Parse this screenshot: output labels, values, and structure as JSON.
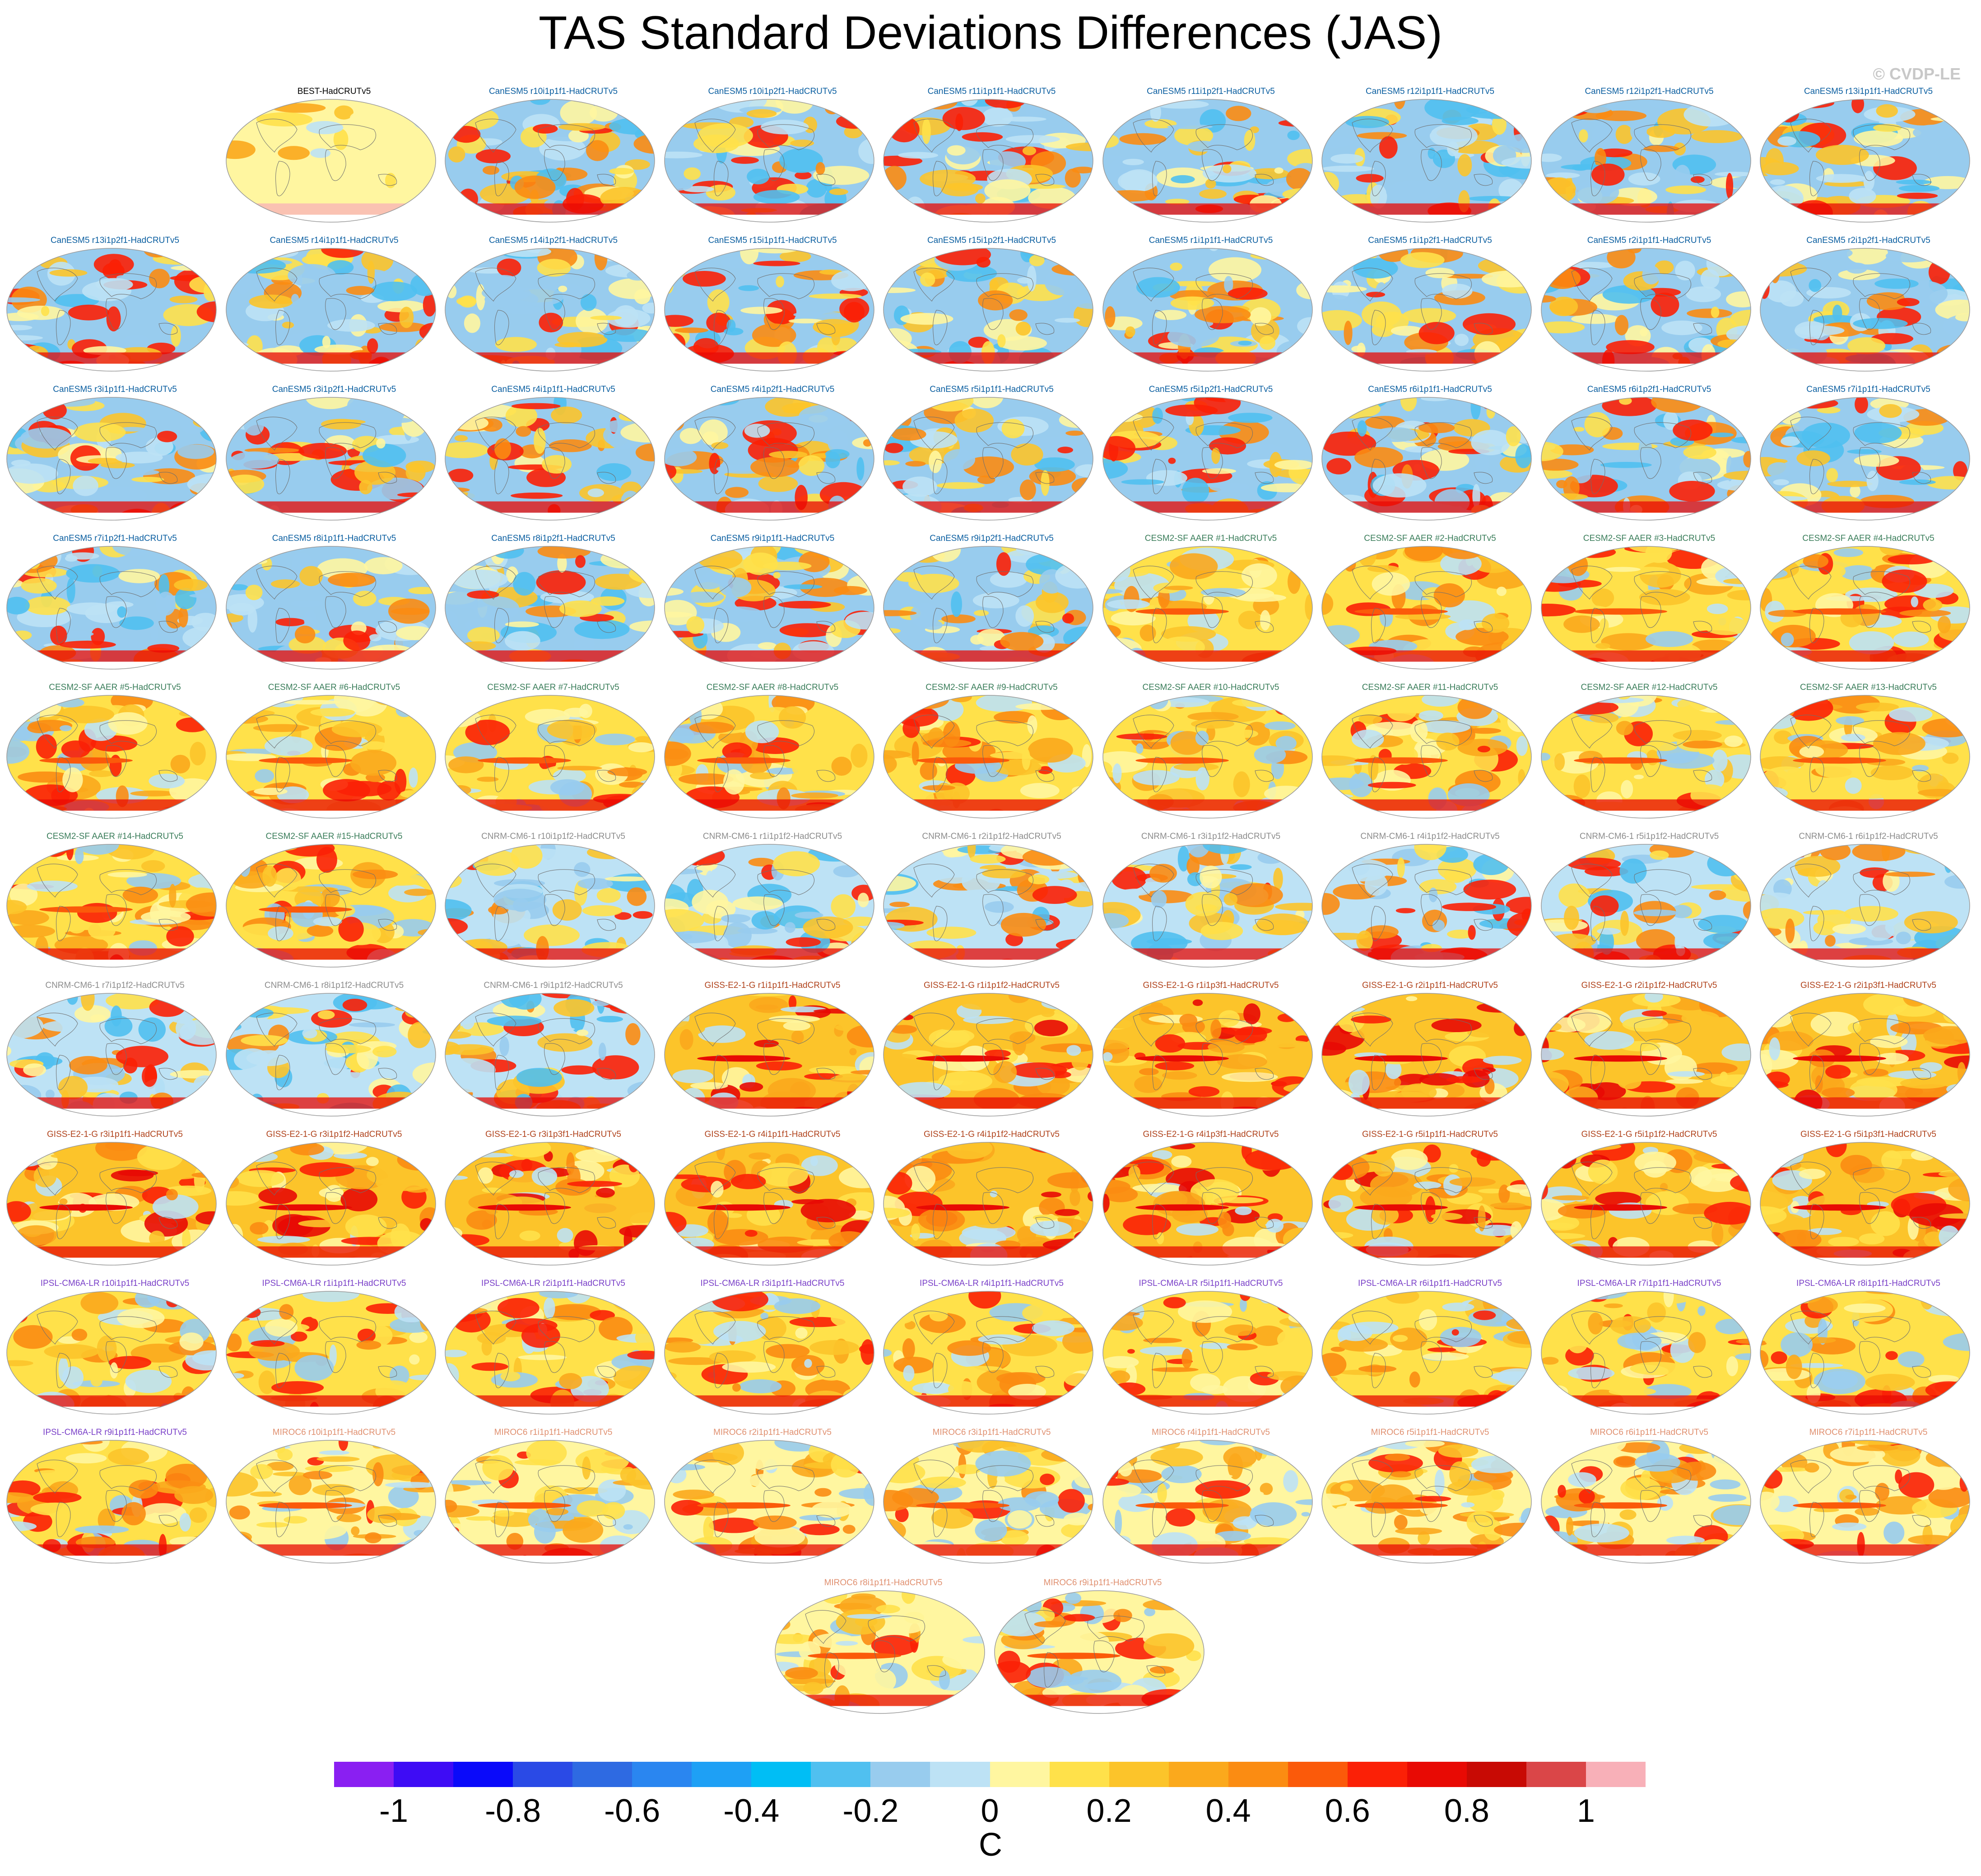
{
  "title": "TAS Standard Deviations Differences (JAS)",
  "watermark": "© CVDP-LE",
  "colorbar": {
    "colors": [
      "#8a1ff2",
      "#3e0cf5",
      "#0a0afa",
      "#2a4ae6",
      "#2e6ae2",
      "#2a86f0",
      "#1ea0f5",
      "#00bef5",
      "#50c0f0",
      "#98ccee",
      "#bde2f5",
      "#fff6a0",
      "#ffe14a",
      "#fcc42a",
      "#fba91c",
      "#fb8c12",
      "#fb5a0a",
      "#fb2006",
      "#e80a04",
      "#c80a04",
      "#da4648",
      "#f8b0b8"
    ],
    "tick_labels": [
      "-1",
      "-0.8",
      "-0.6",
      "-0.4",
      "-0.2",
      "0",
      "0.2",
      "0.4",
      "0.6",
      "0.8",
      "1"
    ],
    "unit": "C"
  },
  "model_colors": {
    "BEST": "#000000",
    "CanESM5": "#0a5ea0",
    "CESM2": "#3a7d5a",
    "CNRM": "#8c8c8c",
    "GISS": "#b0431c",
    "IPSL": "#7a40c8",
    "MIROC6": "#e09070"
  },
  "panels": [
    {
      "label": "BEST-HadCRUTv5",
      "model": "BEST"
    },
    {
      "label": "CanESM5 r10i1p1f1-HadCRUTv5",
      "model": "CanESM5"
    },
    {
      "label": "CanESM5 r10i1p2f1-HadCRUTv5",
      "model": "CanESM5"
    },
    {
      "label": "CanESM5 r11i1p1f1-HadCRUTv5",
      "model": "CanESM5"
    },
    {
      "label": "CanESM5 r11i1p2f1-HadCRUTv5",
      "model": "CanESM5"
    },
    {
      "label": "CanESM5 r12i1p1f1-HadCRUTv5",
      "model": "CanESM5"
    },
    {
      "label": "CanESM5 r12i1p2f1-HadCRUTv5",
      "model": "CanESM5"
    },
    {
      "label": "CanESM5 r13i1p1f1-HadCRUTv5",
      "model": "CanESM5"
    },
    {
      "label": "CanESM5 r13i1p2f1-HadCRUTv5",
      "model": "CanESM5"
    },
    {
      "label": "CanESM5 r14i1p1f1-HadCRUTv5",
      "model": "CanESM5"
    },
    {
      "label": "CanESM5 r14i1p2f1-HadCRUTv5",
      "model": "CanESM5"
    },
    {
      "label": "CanESM5 r15i1p1f1-HadCRUTv5",
      "model": "CanESM5"
    },
    {
      "label": "CanESM5 r15i1p2f1-HadCRUTv5",
      "model": "CanESM5"
    },
    {
      "label": "CanESM5 r1i1p1f1-HadCRUTv5",
      "model": "CanESM5"
    },
    {
      "label": "CanESM5 r1i1p2f1-HadCRUTv5",
      "model": "CanESM5"
    },
    {
      "label": "CanESM5 r2i1p1f1-HadCRUTv5",
      "model": "CanESM5"
    },
    {
      "label": "CanESM5 r2i1p2f1-HadCRUTv5",
      "model": "CanESM5"
    },
    {
      "label": "CanESM5 r3i1p1f1-HadCRUTv5",
      "model": "CanESM5"
    },
    {
      "label": "CanESM5 r3i1p2f1-HadCRUTv5",
      "model": "CanESM5"
    },
    {
      "label": "CanESM5 r4i1p1f1-HadCRUTv5",
      "model": "CanESM5"
    },
    {
      "label": "CanESM5 r4i1p2f1-HadCRUTv5",
      "model": "CanESM5"
    },
    {
      "label": "CanESM5 r5i1p1f1-HadCRUTv5",
      "model": "CanESM5"
    },
    {
      "label": "CanESM5 r5i1p2f1-HadCRUTv5",
      "model": "CanESM5"
    },
    {
      "label": "CanESM5 r6i1p1f1-HadCRUTv5",
      "model": "CanESM5"
    },
    {
      "label": "CanESM5 r6i1p2f1-HadCRUTv5",
      "model": "CanESM5"
    },
    {
      "label": "CanESM5 r7i1p1f1-HadCRUTv5",
      "model": "CanESM5"
    },
    {
      "label": "CanESM5 r7i1p2f1-HadCRUTv5",
      "model": "CanESM5"
    },
    {
      "label": "CanESM5 r8i1p1f1-HadCRUTv5",
      "model": "CanESM5"
    },
    {
      "label": "CanESM5 r8i1p2f1-HadCRUTv5",
      "model": "CanESM5"
    },
    {
      "label": "CanESM5 r9i1p1f1-HadCRUTv5",
      "model": "CanESM5"
    },
    {
      "label": "CanESM5 r9i1p2f1-HadCRUTv5",
      "model": "CanESM5"
    },
    {
      "label": "CESM2-SF AAER #1-HadCRUTv5",
      "model": "CESM2"
    },
    {
      "label": "CESM2-SF AAER #2-HadCRUTv5",
      "model": "CESM2"
    },
    {
      "label": "CESM2-SF AAER #3-HadCRUTv5",
      "model": "CESM2"
    },
    {
      "label": "CESM2-SF AAER #4-HadCRUTv5",
      "model": "CESM2"
    },
    {
      "label": "CESM2-SF AAER #5-HadCRUTv5",
      "model": "CESM2"
    },
    {
      "label": "CESM2-SF AAER #6-HadCRUTv5",
      "model": "CESM2"
    },
    {
      "label": "CESM2-SF AAER #7-HadCRUTv5",
      "model": "CESM2"
    },
    {
      "label": "CESM2-SF AAER #8-HadCRUTv5",
      "model": "CESM2"
    },
    {
      "label": "CESM2-SF AAER #9-HadCRUTv5",
      "model": "CESM2"
    },
    {
      "label": "CESM2-SF AAER #10-HadCRUTv5",
      "model": "CESM2"
    },
    {
      "label": "CESM2-SF AAER #11-HadCRUTv5",
      "model": "CESM2"
    },
    {
      "label": "CESM2-SF AAER #12-HadCRUTv5",
      "model": "CESM2"
    },
    {
      "label": "CESM2-SF AAER #13-HadCRUTv5",
      "model": "CESM2"
    },
    {
      "label": "CESM2-SF AAER #14-HadCRUTv5",
      "model": "CESM2"
    },
    {
      "label": "CESM2-SF AAER #15-HadCRUTv5",
      "model": "CESM2"
    },
    {
      "label": "CNRM-CM6-1 r10i1p1f2-HadCRUTv5",
      "model": "CNRM"
    },
    {
      "label": "CNRM-CM6-1 r1i1p1f2-HadCRUTv5",
      "model": "CNRM"
    },
    {
      "label": "CNRM-CM6-1 r2i1p1f2-HadCRUTv5",
      "model": "CNRM"
    },
    {
      "label": "CNRM-CM6-1 r3i1p1f2-HadCRUTv5",
      "model": "CNRM"
    },
    {
      "label": "CNRM-CM6-1 r4i1p1f2-HadCRUTv5",
      "model": "CNRM"
    },
    {
      "label": "CNRM-CM6-1 r5i1p1f2-HadCRUTv5",
      "model": "CNRM"
    },
    {
      "label": "CNRM-CM6-1 r6i1p1f2-HadCRUTv5",
      "model": "CNRM"
    },
    {
      "label": "CNRM-CM6-1 r7i1p1f2-HadCRUTv5",
      "model": "CNRM"
    },
    {
      "label": "CNRM-CM6-1 r8i1p1f2-HadCRUTv5",
      "model": "CNRM"
    },
    {
      "label": "CNRM-CM6-1 r9i1p1f2-HadCRUTv5",
      "model": "CNRM"
    },
    {
      "label": "GISS-E2-1-G r1i1p1f1-HadCRUTv5",
      "model": "GISS"
    },
    {
      "label": "GISS-E2-1-G r1i1p1f2-HadCRUTv5",
      "model": "GISS"
    },
    {
      "label": "GISS-E2-1-G r1i1p3f1-HadCRUTv5",
      "model": "GISS"
    },
    {
      "label": "GISS-E2-1-G r2i1p1f1-HadCRUTv5",
      "model": "GISS"
    },
    {
      "label": "GISS-E2-1-G r2i1p1f2-HadCRUTv5",
      "model": "GISS"
    },
    {
      "label": "GISS-E2-1-G r2i1p3f1-HadCRUTv5",
      "model": "GISS"
    },
    {
      "label": "GISS-E2-1-G r3i1p1f1-HadCRUTv5",
      "model": "GISS"
    },
    {
      "label": "GISS-E2-1-G r3i1p1f2-HadCRUTv5",
      "model": "GISS"
    },
    {
      "label": "GISS-E2-1-G r3i1p3f1-HadCRUTv5",
      "model": "GISS"
    },
    {
      "label": "GISS-E2-1-G r4i1p1f1-HadCRUTv5",
      "model": "GISS"
    },
    {
      "label": "GISS-E2-1-G r4i1p1f2-HadCRUTv5",
      "model": "GISS"
    },
    {
      "label": "GISS-E2-1-G r4i1p3f1-HadCRUTv5",
      "model": "GISS"
    },
    {
      "label": "GISS-E2-1-G r5i1p1f1-HadCRUTv5",
      "model": "GISS"
    },
    {
      "label": "GISS-E2-1-G r5i1p1f2-HadCRUTv5",
      "model": "GISS"
    },
    {
      "label": "GISS-E2-1-G r5i1p3f1-HadCRUTv5",
      "model": "GISS"
    },
    {
      "label": "IPSL-CM6A-LR r10i1p1f1-HadCRUTv5",
      "model": "IPSL"
    },
    {
      "label": "IPSL-CM6A-LR r1i1p1f1-HadCRUTv5",
      "model": "IPSL"
    },
    {
      "label": "IPSL-CM6A-LR r2i1p1f1-HadCRUTv5",
      "model": "IPSL"
    },
    {
      "label": "IPSL-CM6A-LR r3i1p1f1-HadCRUTv5",
      "model": "IPSL"
    },
    {
      "label": "IPSL-CM6A-LR r4i1p1f1-HadCRUTv5",
      "model": "IPSL"
    },
    {
      "label": "IPSL-CM6A-LR r5i1p1f1-HadCRUTv5",
      "model": "IPSL"
    },
    {
      "label": "IPSL-CM6A-LR r6i1p1f1-HadCRUTv5",
      "model": "IPSL"
    },
    {
      "label": "IPSL-CM6A-LR r7i1p1f1-HadCRUTv5",
      "model": "IPSL"
    },
    {
      "label": "IPSL-CM6A-LR r8i1p1f1-HadCRUTv5",
      "model": "IPSL"
    },
    {
      "label": "IPSL-CM6A-LR r9i1p1f1-HadCRUTv5",
      "model": "IPSL"
    },
    {
      "label": "MIROC6 r10i1p1f1-HadCRUTv5",
      "model": "MIROC6"
    },
    {
      "label": "MIROC6 r1i1p1f1-HadCRUTv5",
      "model": "MIROC6"
    },
    {
      "label": "MIROC6 r2i1p1f1-HadCRUTv5",
      "model": "MIROC6"
    },
    {
      "label": "MIROC6 r3i1p1f1-HadCRUTv5",
      "model": "MIROC6"
    },
    {
      "label": "MIROC6 r4i1p1f1-HadCRUTv5",
      "model": "MIROC6"
    },
    {
      "label": "MIROC6 r5i1p1f1-HadCRUTv5",
      "model": "MIROC6"
    },
    {
      "label": "MIROC6 r6i1p1f1-HadCRUTv5",
      "model": "MIROC6"
    },
    {
      "label": "MIROC6 r7i1p1f1-HadCRUTv5",
      "model": "MIROC6"
    },
    {
      "label": "MIROC6 r8i1p1f1-HadCRUTv5",
      "model": "MIROC6"
    },
    {
      "label": "MIROC6 r9i1p1f1-HadCRUTv5",
      "model": "MIROC6"
    }
  ]
}
